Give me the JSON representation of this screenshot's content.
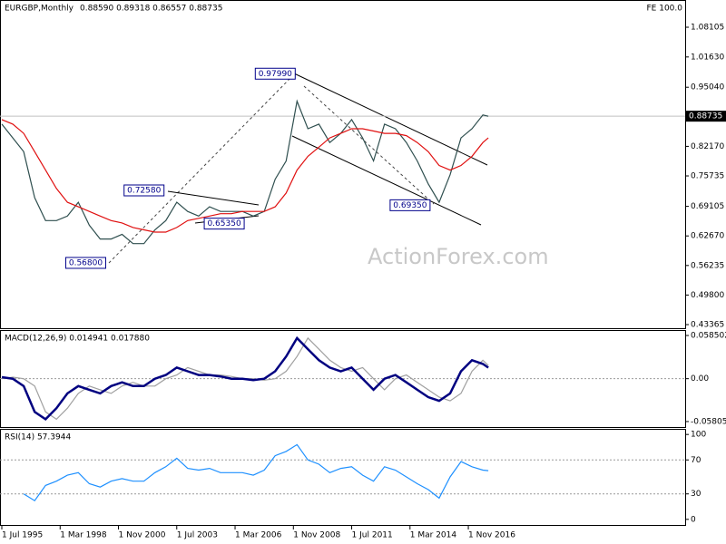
{
  "chart_data": [
    {
      "type": "line",
      "title": "EURGBP,Monthly",
      "subtitle": "0.88590 0.89318 0.86557 0.88735",
      "corner_label": "FE 100.0",
      "watermark": "ActionForex.com",
      "x": [
        "1995-07",
        "1996-01",
        "1996-07",
        "1997-01",
        "1997-07",
        "1998-01",
        "1998-07",
        "1999-01",
        "1999-07",
        "2000-01",
        "2000-07",
        "2001-01",
        "2001-07",
        "2002-01",
        "2002-07",
        "2003-01",
        "2003-07",
        "2004-01",
        "2004-07",
        "2005-01",
        "2005-07",
        "2006-01",
        "2006-07",
        "2007-01",
        "2007-07",
        "2008-01",
        "2008-07",
        "2009-01",
        "2009-07",
        "2010-01",
        "2010-07",
        "2011-01",
        "2011-07",
        "2012-01",
        "2012-07",
        "2013-01",
        "2013-07",
        "2014-01",
        "2014-07",
        "2015-01",
        "2015-07",
        "2016-01",
        "2016-07",
        "2017-01",
        "2017-07",
        "2017-10"
      ],
      "series": [
        {
          "color": "#2f4f4f",
          "values": [
            0.87,
            0.84,
            0.81,
            0.71,
            0.66,
            0.66,
            0.67,
            0.7,
            0.65,
            0.62,
            0.62,
            0.63,
            0.61,
            0.61,
            0.64,
            0.66,
            0.7,
            0.68,
            0.67,
            0.69,
            0.68,
            0.68,
            0.68,
            0.67,
            0.68,
            0.75,
            0.79,
            0.92,
            0.86,
            0.87,
            0.83,
            0.85,
            0.88,
            0.84,
            0.79,
            0.87,
            0.86,
            0.83,
            0.79,
            0.74,
            0.7,
            0.76,
            0.84,
            0.86,
            0.89,
            0.88735
          ]
        },
        {
          "color": "#e01010",
          "values": [
            0.88,
            0.87,
            0.85,
            0.81,
            0.77,
            0.73,
            0.7,
            0.69,
            0.68,
            0.67,
            0.66,
            0.655,
            0.645,
            0.64,
            0.635,
            0.635,
            0.645,
            0.66,
            0.665,
            0.67,
            0.675,
            0.675,
            0.68,
            0.68,
            0.68,
            0.69,
            0.72,
            0.77,
            0.8,
            0.82,
            0.84,
            0.85,
            0.86,
            0.86,
            0.855,
            0.85,
            0.85,
            0.845,
            0.83,
            0.81,
            0.78,
            0.77,
            0.78,
            0.8,
            0.83,
            0.84
          ]
        }
      ],
      "xlim": [
        "1995-06",
        "2026-10"
      ],
      "ylim": [
        0.4258,
        1.1403
      ],
      "yticks": [
        1.08105,
        {
          "value": 1.0163,
          "label": "1.01630"
        },
        {
          "value": 0.9504,
          "label": "0.95040"
        },
        {
          "value": 0.8217,
          "label": "0.82170"
        },
        0.75735,
        0.69105,
        {
          "value": 0.6267,
          "label": "0.62670"
        },
        0.56235,
        {
          "value": 0.498,
          "label": "0.49800"
        },
        0.43365
      ],
      "last_price": {
        "value": 0.88735,
        "label": "0.88735"
      },
      "annotations": [
        {
          "x": "2009-01",
          "value": 0.9799,
          "label": "0.97990"
        },
        {
          "x": "2003-01",
          "value": 0.7258,
          "label": "0.72580"
        },
        {
          "x": "2006-09",
          "value": 0.6535,
          "label": "0.65350"
        },
        {
          "x": "2000-05",
          "value": 0.568,
          "label": "0.56800"
        },
        {
          "x": "2015-03",
          "value": 0.6935,
          "label": "0.69350"
        }
      ]
    },
    {
      "type": "line",
      "title": "MACD(12,26,9) 0.014941 0.017880",
      "x": [
        "1995-07",
        "1996-01",
        "1996-07",
        "1997-01",
        "1997-07",
        "1998-01",
        "1998-07",
        "1999-01",
        "1999-07",
        "2000-01",
        "2000-07",
        "2001-01",
        "2001-07",
        "2002-01",
        "2002-07",
        "2003-01",
        "2003-07",
        "2004-01",
        "2004-07",
        "2005-01",
        "2005-07",
        "2006-01",
        "2006-07",
        "2007-01",
        "2007-07",
        "2008-01",
        "2008-07",
        "2009-01",
        "2009-07",
        "2010-01",
        "2010-07",
        "2011-01",
        "2011-07",
        "2012-01",
        "2012-07",
        "2013-01",
        "2013-07",
        "2014-01",
        "2014-07",
        "2015-01",
        "2015-07",
        "2016-01",
        "2016-07",
        "2017-01",
        "2017-07",
        "2017-10"
      ],
      "series": [
        {
          "color": "#a0a0a0",
          "values": [
            0,
            0.002,
            0,
            -0.01,
            -0.045,
            -0.055,
            -0.04,
            -0.02,
            -0.01,
            -0.015,
            -0.02,
            -0.01,
            -0.005,
            -0.01,
            -0.01,
            0,
            0.005,
            0.015,
            0.01,
            0.005,
            0.005,
            0.003,
            0,
            0,
            -0.002,
            0,
            0.01,
            0.03,
            0.055,
            0.04,
            0.025,
            0.015,
            0.01,
            0.015,
            0,
            -0.015,
            0,
            0.005,
            -0.005,
            -0.015,
            -0.025,
            -0.03,
            -0.02,
            0.01,
            0.025,
            0.01788
          ]
        },
        {
          "color": "#000080",
          "values": [
            0.002,
            0,
            -0.01,
            -0.045,
            -0.055,
            -0.04,
            -0.02,
            -0.01,
            -0.015,
            -0.02,
            -0.01,
            -0.005,
            -0.01,
            -0.01,
            0,
            0.005,
            0.015,
            0.01,
            0.005,
            0.005,
            0.003,
            0,
            0,
            -0.002,
            0,
            0.01,
            0.03,
            0.055,
            0.04,
            0.025,
            0.015,
            0.01,
            0.015,
            0,
            -0.015,
            0,
            0.005,
            -0.005,
            -0.015,
            -0.025,
            -0.03,
            -0.02,
            0.01,
            0.025,
            0.02,
            0.014941
          ]
        }
      ],
      "xlim": [
        "1995-06",
        "2026-10"
      ],
      "ylim": [
        -0.0655,
        0.0659
      ],
      "yticks": [
        0.058502,
        {
          "value": 0,
          "label": "0.00"
        },
        -0.058054
      ],
      "level_lines": true
    },
    {
      "type": "line",
      "title": "RSI(14) 57.3944",
      "x": [
        "1995-07",
        "1996-01",
        "1996-07",
        "1997-01",
        "1997-07",
        "1998-01",
        "1998-07",
        "1999-01",
        "1999-07",
        "2000-01",
        "2000-07",
        "2001-01",
        "2001-07",
        "2002-01",
        "2002-07",
        "2003-01",
        "2003-07",
        "2004-01",
        "2004-07",
        "2005-01",
        "2005-07",
        "2006-01",
        "2006-07",
        "2007-01",
        "2007-07",
        "2008-01",
        "2008-07",
        "2009-01",
        "2009-07",
        "2010-01",
        "2010-07",
        "2011-01",
        "2011-07",
        "2012-01",
        "2012-07",
        "2013-01",
        "2013-07",
        "2014-01",
        "2014-07",
        "2015-01",
        "2015-07",
        "2016-01",
        "2016-07",
        "2017-01",
        "2017-07",
        "2017-10"
      ],
      "series": [
        {
          "color": "#1e90ff",
          "values": [
            null,
            null,
            30,
            22,
            40,
            45,
            52,
            55,
            42,
            38,
            45,
            48,
            45,
            45,
            55,
            62,
            72,
            60,
            58,
            60,
            55,
            55,
            55,
            52,
            58,
            75,
            80,
            88,
            70,
            65,
            55,
            60,
            62,
            52,
            45,
            62,
            58,
            50,
            42,
            35,
            25,
            50,
            68,
            62,
            58,
            57.3944
          ]
        }
      ],
      "xlim": [
        "1995-06",
        "2026-10"
      ],
      "ylim": [
        -6.6,
        106.6
      ],
      "yticks": [
        100,
        70,
        30,
        0
      ],
      "level_lines": true,
      "xticks": [
        {
          "value": "1995-07",
          "label": "1 Jul 1995"
        },
        {
          "value": "1998-03",
          "label": "1 Mar 1998"
        },
        {
          "value": "2000-11",
          "label": "1 Nov 2000"
        },
        {
          "value": "2003-07",
          "label": "1 Jul 2003"
        },
        {
          "value": "2006-03",
          "label": "1 Mar 2006"
        },
        {
          "value": "2008-11",
          "label": "1 Nov 2008"
        },
        {
          "value": "2011-07",
          "label": "1 Jul 2011"
        },
        {
          "value": "2014-03",
          "label": "1 Mar 2014"
        },
        {
          "value": "2016-11",
          "label": "1 Nov 2016"
        }
      ]
    }
  ]
}
